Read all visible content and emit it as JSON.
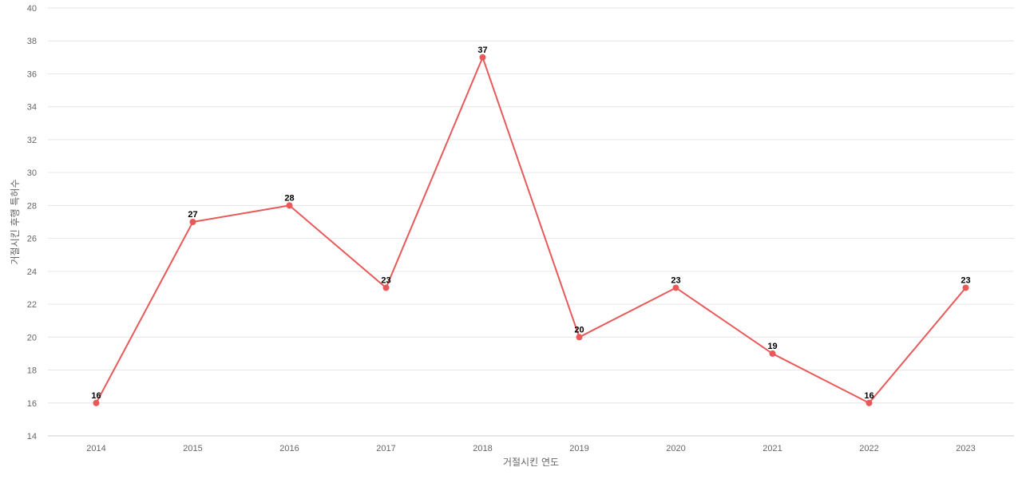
{
  "chart_data": {
    "type": "line",
    "x": [
      "2014",
      "2015",
      "2016",
      "2017",
      "2018",
      "2019",
      "2020",
      "2021",
      "2022",
      "2023"
    ],
    "series": [
      {
        "values": [
          16,
          27,
          28,
          23,
          37,
          20,
          23,
          19,
          16,
          23
        ]
      }
    ],
    "xlabel": "거절시킨 연도",
    "ylabel": "거절시킨 후행 특허수",
    "ylim": [
      14,
      40
    ],
    "yticks": [
      14,
      16,
      18,
      20,
      22,
      24,
      26,
      28,
      30,
      32,
      34,
      36,
      38,
      40
    ],
    "grid": true,
    "color": "#e85a5a"
  }
}
